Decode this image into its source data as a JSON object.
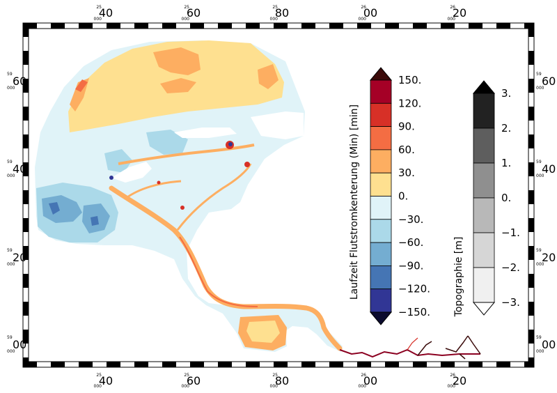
{
  "map": {
    "lon_major": [
      "40",
      "60",
      "80",
      "00",
      "20"
    ],
    "lon_minor": [
      "25",
      "25",
      "25",
      "26",
      "26"
    ],
    "lat_major": [
      "60",
      "40",
      "20",
      "00"
    ],
    "lat_minor": [
      "59",
      "59",
      "59",
      "59"
    ]
  },
  "legend_main": {
    "title": "Laufzeit Flutstromkenterung (Min) [min]",
    "labels": [
      "150.",
      "120.",
      "90.",
      "60.",
      "30.",
      "0.",
      "−30.",
      "−60.",
      "−90.",
      "−120.",
      "−150."
    ],
    "colors": [
      "#a50026",
      "#d73027",
      "#f46d43",
      "#fdae61",
      "#fee090",
      "#e0f3f8",
      "#abd9e9",
      "#74add1",
      "#4575b4",
      "#313695"
    ],
    "over_color": "#3b0a0a",
    "under_color": "#0b0b2e"
  },
  "legend_topo": {
    "title": "Topographie [m]",
    "labels": [
      "3.",
      "2.",
      "1.",
      "0.",
      "−1.",
      "−2.",
      "−3."
    ],
    "colors": [
      "#222222",
      "#5e5e5e",
      "#8f8f8f",
      "#b8b8b8",
      "#d6d6d6",
      "#f0f0f0"
    ],
    "over_color": "#000000",
    "under_color": "#ffffff"
  }
}
